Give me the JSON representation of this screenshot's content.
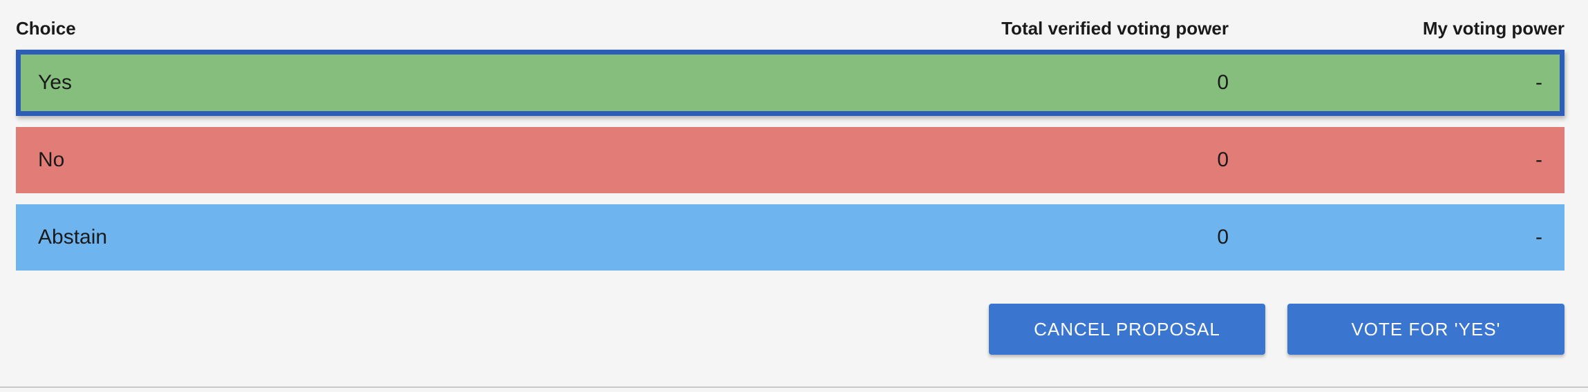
{
  "table": {
    "headers": {
      "choice": "Choice",
      "total": "Total verified voting power",
      "mine": "My voting power"
    },
    "rows": [
      {
        "label": "Yes",
        "total": "0",
        "mine": "-",
        "color": "#86be7e",
        "selected": true
      },
      {
        "label": "No",
        "total": "0",
        "mine": "-",
        "color": "#e27c77",
        "selected": false
      },
      {
        "label": "Abstain",
        "total": "0",
        "mine": "-",
        "color": "#6eb4ef",
        "selected": false
      }
    ]
  },
  "actions": {
    "cancel_label": "CANCEL PROPOSAL",
    "vote_label": "VOTE FOR 'YES'"
  },
  "colors": {
    "selected_border": "#2c5db8",
    "button": "#3a75cf",
    "background": "#f5f5f5"
  }
}
